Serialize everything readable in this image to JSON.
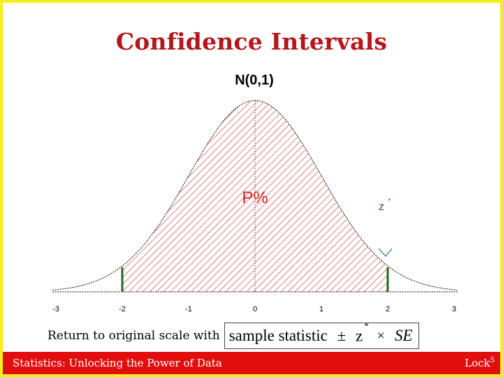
{
  "slide": {
    "title": "Confidence Intervals",
    "lead_text": "Return to original scale with",
    "footer_left": "Statistics: Unlocking the Power of Data",
    "footer_right": "Lock",
    "footer_right_sup": "5"
  },
  "formula": {
    "statistic": "sample statistic",
    "plus_minus": "±",
    "z": "z",
    "z_star": "*",
    "times": "×",
    "se": "SE"
  },
  "colors": {
    "border": "#f5ee1a",
    "title": "#b5161b",
    "footer_bg": "#e20e0e",
    "hatch": "#d23a3a",
    "interval_bounds": "#1f6b1f"
  },
  "chart_data": {
    "type": "area",
    "title": "N(0,1)",
    "distribution": "standard normal",
    "xlim": [
      -3,
      3
    ],
    "x_ticks": [
      "-3",
      "-2",
      "-1",
      "0",
      "1",
      "2",
      "3"
    ],
    "shaded_interval": [
      -2,
      2
    ],
    "center_label": "P%",
    "critical_label": "z",
    "critical_label_sup": "*",
    "grid": false
  }
}
